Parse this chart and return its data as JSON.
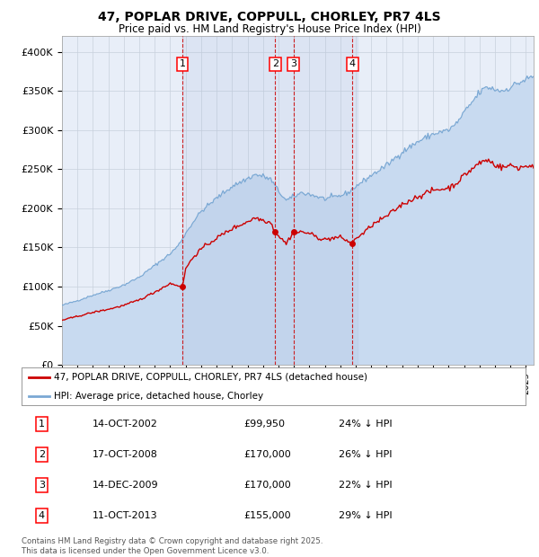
{
  "title": "47, POPLAR DRIVE, COPPULL, CHORLEY, PR7 4LS",
  "subtitle": "Price paid vs. HM Land Registry's House Price Index (HPI)",
  "background_color": "#ffffff",
  "plot_bg_color": "#e8eef8",
  "grid_color": "#c8d0dc",
  "hpi_line_color": "#7aa8d4",
  "hpi_fill_color": "#c8daf0",
  "property_line_color": "#cc0000",
  "marker_color": "#cc0000",
  "dashed_line_color": "#cc0000",
  "legend_label_property": "47, POPLAR DRIVE, COPPULL, CHORLEY, PR7 4LS (detached house)",
  "legend_label_hpi": "HPI: Average price, detached house, Chorley",
  "ylim": [
    0,
    420000
  ],
  "yticks": [
    0,
    50000,
    100000,
    150000,
    200000,
    250000,
    300000,
    350000,
    400000
  ],
  "x_start_year": 1995,
  "x_end_year": 2025,
  "trans_years": [
    2002.79,
    2008.79,
    2009.96,
    2013.79
  ],
  "trans_prices": [
    99950,
    170000,
    170000,
    155000
  ],
  "trans_nums": [
    1,
    2,
    3,
    4
  ],
  "table_rows": [
    {
      "num": "1",
      "date": "14-OCT-2002",
      "price": "£99,950",
      "pct": "24% ↓ HPI"
    },
    {
      "num": "2",
      "date": "17-OCT-2008",
      "price": "£170,000",
      "pct": "26% ↓ HPI"
    },
    {
      "num": "3",
      "date": "14-DEC-2009",
      "price": "£170,000",
      "pct": "22% ↓ HPI"
    },
    {
      "num": "4",
      "date": "11-OCT-2013",
      "price": "£155,000",
      "pct": "29% ↓ HPI"
    }
  ],
  "footnote1": "Contains HM Land Registry data © Crown copyright and database right 2025.",
  "footnote2": "This data is licensed under the Open Government Licence v3.0."
}
